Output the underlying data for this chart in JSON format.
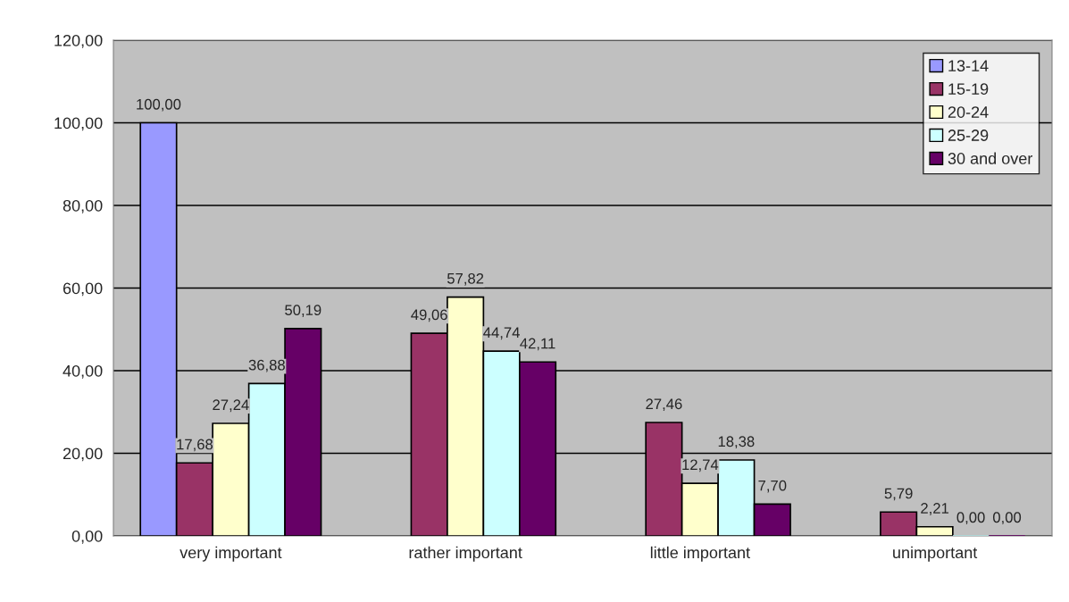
{
  "chart_data": {
    "type": "bar",
    "categories": [
      "very important",
      "rather important",
      "little important",
      "unimportant"
    ],
    "series": [
      {
        "name": "13-14",
        "color": "#9999ff",
        "values": [
          100.0,
          null,
          null,
          null
        ],
        "value_labels": [
          "100,00",
          null,
          null,
          null
        ]
      },
      {
        "name": "15-19",
        "color": "#993366",
        "values": [
          17.68,
          49.06,
          27.46,
          5.79
        ],
        "value_labels": [
          "17,68",
          "49,06",
          "27,46",
          "5,79"
        ]
      },
      {
        "name": "20-24",
        "color": "#ffffcc",
        "values": [
          27.24,
          57.82,
          12.74,
          2.21
        ],
        "value_labels": [
          "27,24",
          "57,82",
          "12,74",
          "2,21"
        ]
      },
      {
        "name": "25-29",
        "color": "#ccffff",
        "values": [
          36.88,
          44.74,
          18.38,
          0.0
        ],
        "value_labels": [
          "36,88",
          "44,74",
          "18,38",
          "0,00"
        ]
      },
      {
        "name": "30 and over",
        "color": "#660066",
        "values": [
          50.19,
          42.11,
          7.7,
          0.0
        ],
        "value_labels": [
          "50,19",
          "42,11",
          "7,70",
          "0,00"
        ]
      }
    ],
    "ylim": [
      0,
      120
    ],
    "yticks": [
      {
        "value": 0,
        "label": "0,00"
      },
      {
        "value": 20,
        "label": "20,00"
      },
      {
        "value": 40,
        "label": "40,00"
      },
      {
        "value": 60,
        "label": "60,00"
      },
      {
        "value": 80,
        "label": "80,00"
      },
      {
        "value": 100,
        "label": "100,00"
      },
      {
        "value": 120,
        "label": "120,00"
      }
    ],
    "grid": "y",
    "legend": "top right"
  }
}
